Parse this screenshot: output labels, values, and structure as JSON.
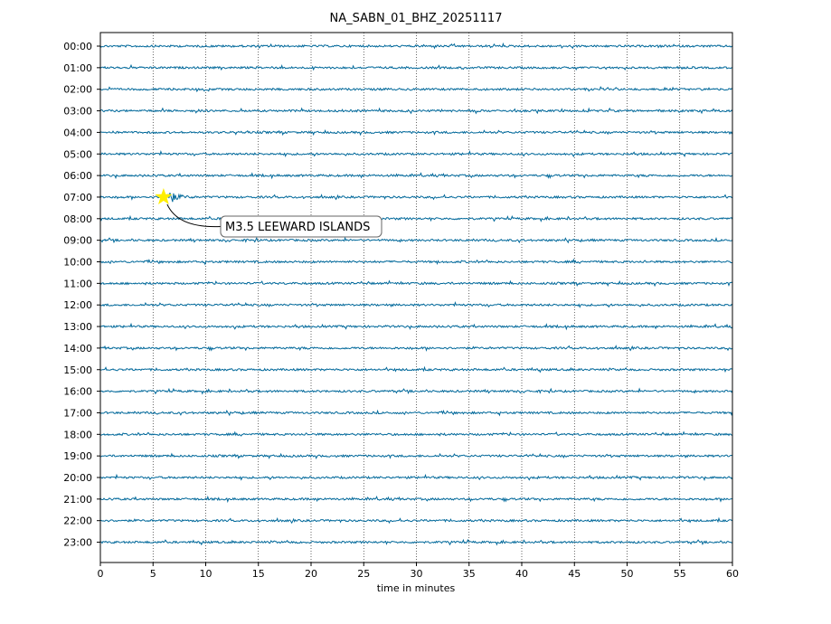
{
  "chart_data": {
    "type": "line",
    "title": "NA_SABN_01_BHZ_20251117",
    "xlabel": "time in minutes",
    "ylabel": "",
    "xlim": [
      0,
      60
    ],
    "x_ticks": [
      0,
      5,
      10,
      15,
      20,
      25,
      30,
      35,
      40,
      45,
      50,
      55,
      60
    ],
    "grid": "vertical dotted at x ticks",
    "trace_color": "#00689a",
    "rows": [
      "00:00",
      "01:00",
      "02:00",
      "03:00",
      "04:00",
      "05:00",
      "06:00",
      "07:00",
      "08:00",
      "09:00",
      "10:00",
      "11:00",
      "12:00",
      "13:00",
      "14:00",
      "15:00",
      "16:00",
      "17:00",
      "18:00",
      "19:00",
      "20:00",
      "21:00",
      "22:00",
      "23:00"
    ],
    "event": {
      "row": "07:00",
      "time_minutes": 6,
      "label": "M3.5 LEEWARD ISLANDS",
      "marker": "star",
      "marker_color": "#ffee00"
    }
  }
}
